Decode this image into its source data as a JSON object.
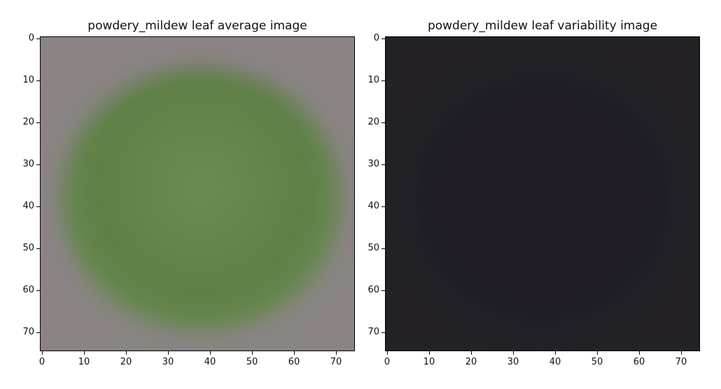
{
  "panels": [
    {
      "title": "powdery_mildew leaf average image",
      "kind": "average",
      "background_color": "#8a8484",
      "leaf_color": "#6b8c52",
      "leaf_shadow_color": "#5e7f46"
    },
    {
      "title": "powdery_mildew leaf variability image",
      "kind": "variability",
      "background_color": "#242227",
      "outline_color": "#2e2c38",
      "core_color": "#1f1d23"
    }
  ],
  "x_ticks": [
    "0",
    "10",
    "20",
    "30",
    "40",
    "50",
    "60",
    "70"
  ],
  "y_ticks": [
    "0",
    "10",
    "20",
    "30",
    "40",
    "50",
    "60",
    "70"
  ],
  "tick_values": [
    0,
    10,
    20,
    30,
    40,
    50,
    60,
    70
  ],
  "axis_range": [
    -0.5,
    74.5
  ]
}
